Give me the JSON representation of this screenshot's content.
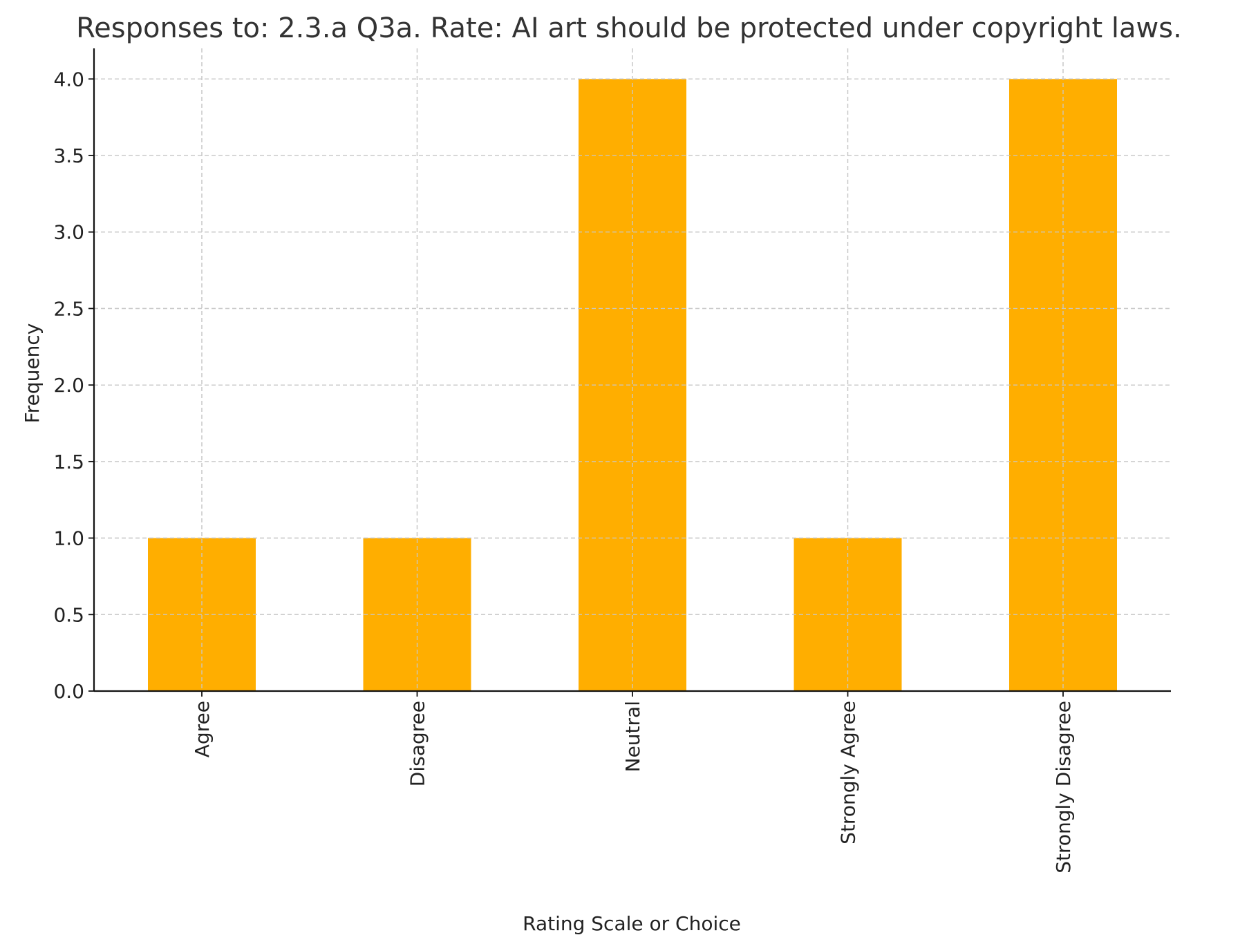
{
  "chart_data": {
    "type": "bar",
    "title": "Responses to: 2.3.a Q3a. Rate: AI art should be protected under copyright laws.",
    "xlabel": "Rating Scale or Choice",
    "ylabel": "Frequency",
    "categories": [
      "Agree",
      "Disagree",
      "Neutral",
      "Strongly Agree",
      "Strongly Disagree"
    ],
    "values": [
      1,
      1,
      4,
      1,
      4
    ],
    "ylim": [
      0,
      4.2
    ],
    "yticks": [
      0.0,
      0.5,
      1.0,
      1.5,
      2.0,
      2.5,
      3.0,
      3.5,
      4.0
    ],
    "ytick_labels": [
      "0.0",
      "0.5",
      "1.0",
      "1.5",
      "2.0",
      "2.5",
      "3.0",
      "3.5",
      "4.0"
    ],
    "grid": true,
    "legend": "none",
    "bar_color": "#FFAE00"
  }
}
